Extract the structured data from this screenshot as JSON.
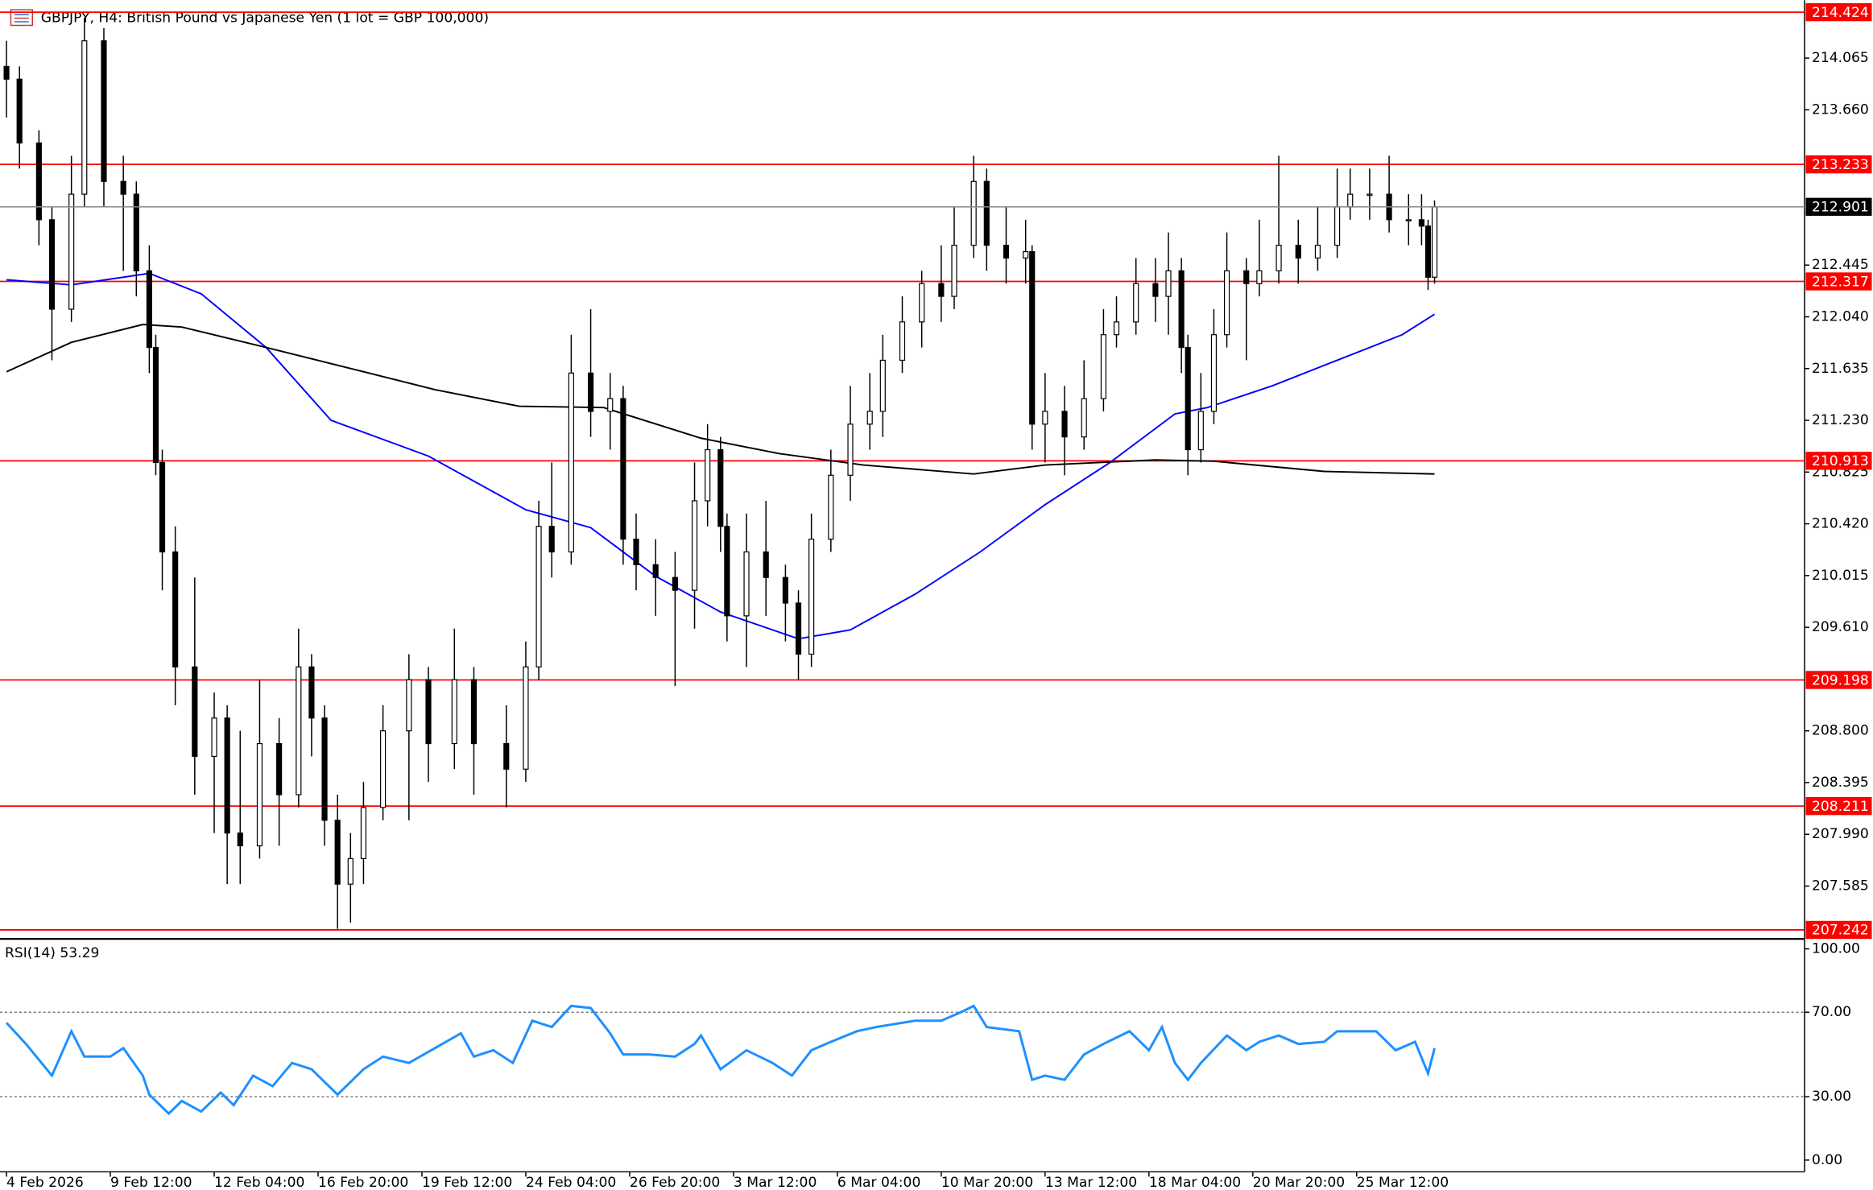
{
  "chart_data": [
    {
      "type": "candlestick",
      "title": "GBPJPY, H4:  British Pound vs Japanese Yen (1 lot = GBP 100,000)",
      "xlim": [
        -1,
        277
      ],
      "ylim": [
        207.19,
        214.49
      ],
      "yticks": [
        {
          "value": 214.065,
          "label": "214.065"
        },
        {
          "value": 213.66,
          "label": "213.660"
        },
        {
          "value": 212.445,
          "label": "212.445"
        },
        {
          "value": 212.04,
          "label": "212.040"
        },
        {
          "value": 211.635,
          "label": "211.635"
        },
        {
          "value": 211.23,
          "label": "211.230"
        },
        {
          "value": 210.825,
          "label": "210.825"
        },
        {
          "value": 210.42,
          "label": "210.420"
        },
        {
          "value": 210.015,
          "label": "210.015"
        },
        {
          "value": 209.61,
          "label": "209.610"
        },
        {
          "value": 208.8,
          "label": "208.800"
        },
        {
          "value": 208.395,
          "label": "208.395"
        },
        {
          "value": 207.99,
          "label": "207.990"
        },
        {
          "value": 207.585,
          "label": "207.585"
        }
      ],
      "levels": [
        214.424,
        213.233,
        212.317,
        210.913,
        209.198,
        208.211,
        207.242
      ],
      "level_color": "#ff0000",
      "last_price": 212.901,
      "x": [
        0,
        2,
        5,
        7,
        10,
        12,
        15,
        18,
        20,
        22,
        23,
        24,
        26,
        29,
        32,
        34,
        36,
        39,
        42,
        45,
        47,
        49,
        51,
        53,
        55,
        58,
        62,
        65,
        69,
        72,
        77,
        80,
        82,
        84,
        87,
        90,
        93,
        95,
        97,
        100,
        103,
        106,
        108,
        110,
        111,
        114,
        117,
        120,
        122,
        124,
        127,
        130,
        133,
        135,
        138,
        141,
        144,
        146,
        149,
        151,
        154,
        157,
        158,
        160,
        163,
        166,
        169,
        171,
        174,
        177,
        179,
        181,
        182,
        184,
        186,
        188,
        191,
        193,
        196,
        199,
        202,
        205,
        207,
        210,
        213,
        216,
        218,
        219,
        220
      ],
      "open": [
        214.0,
        213.9,
        213.4,
        212.8,
        212.1,
        213.0,
        214.2,
        213.1,
        213.0,
        212.4,
        211.8,
        210.9,
        210.2,
        209.3,
        208.6,
        208.9,
        208.0,
        207.9,
        208.7,
        208.3,
        209.3,
        208.9,
        208.1,
        207.6,
        207.8,
        208.2,
        208.8,
        209.2,
        208.7,
        209.2,
        208.7,
        208.5,
        209.3,
        210.4,
        210.2,
        211.6,
        211.3,
        211.4,
        210.3,
        210.1,
        210.0,
        209.9,
        210.6,
        211.0,
        210.4,
        209.7,
        210.2,
        210.0,
        209.8,
        209.4,
        210.3,
        210.8,
        211.2,
        211.3,
        211.7,
        212.0,
        212.3,
        212.2,
        212.6,
        213.1,
        212.6,
        212.5,
        212.55,
        211.2,
        211.3,
        211.1,
        211.4,
        211.9,
        212.0,
        212.3,
        212.2,
        212.4,
        211.8,
        211.0,
        211.3,
        211.9,
        212.4,
        212.3,
        212.4,
        212.6,
        212.5,
        212.6,
        212.9,
        213.0,
        213.0,
        212.8,
        212.8,
        212.75,
        212.35
      ],
      "high": [
        214.2,
        214.0,
        213.5,
        212.9,
        213.3,
        214.38,
        214.3,
        213.3,
        213.1,
        212.6,
        211.9,
        211.0,
        210.4,
        210.0,
        209.1,
        209.0,
        208.8,
        209.2,
        208.9,
        209.6,
        209.4,
        209.0,
        208.3,
        208.0,
        208.4,
        209.0,
        209.4,
        209.3,
        209.6,
        209.3,
        209.0,
        209.5,
        210.6,
        210.9,
        211.9,
        212.1,
        211.6,
        211.5,
        210.5,
        210.3,
        210.2,
        210.9,
        211.2,
        211.1,
        210.5,
        210.5,
        210.6,
        210.1,
        209.9,
        210.5,
        211.0,
        211.5,
        211.6,
        211.9,
        212.2,
        212.4,
        212.6,
        212.9,
        213.3,
        213.2,
        212.9,
        212.8,
        212.6,
        211.6,
        211.5,
        211.7,
        212.1,
        212.2,
        212.5,
        212.5,
        212.7,
        212.5,
        211.9,
        211.6,
        212.1,
        212.7,
        212.5,
        212.8,
        213.3,
        212.8,
        212.9,
        213.2,
        213.2,
        213.2,
        213.3,
        213.0,
        213.0,
        212.8,
        212.95
      ],
      "low": [
        213.6,
        213.2,
        212.6,
        211.7,
        212.0,
        212.9,
        212.9,
        212.4,
        212.2,
        211.6,
        210.8,
        209.9,
        209.0,
        208.3,
        208.0,
        207.6,
        207.6,
        207.8,
        207.9,
        208.2,
        208.6,
        207.9,
        207.25,
        207.3,
        207.6,
        208.1,
        208.1,
        208.4,
        208.5,
        208.3,
        208.2,
        208.4,
        209.2,
        210.0,
        210.1,
        211.1,
        211.0,
        210.1,
        209.9,
        209.7,
        209.15,
        209.6,
        210.4,
        210.2,
        209.5,
        209.3,
        209.7,
        209.5,
        209.2,
        209.3,
        210.2,
        210.6,
        211.0,
        211.1,
        211.6,
        211.8,
        212.0,
        212.1,
        212.5,
        212.4,
        212.3,
        212.3,
        211.0,
        210.9,
        210.8,
        211.0,
        211.3,
        211.8,
        211.9,
        212.0,
        211.9,
        211.6,
        210.8,
        210.9,
        211.2,
        211.8,
        211.7,
        212.2,
        212.3,
        212.3,
        212.4,
        212.5,
        212.8,
        212.8,
        212.7,
        212.6,
        212.6,
        212.25,
        212.3
      ],
      "close": [
        213.9,
        213.4,
        212.8,
        212.1,
        213.0,
        214.2,
        213.1,
        213.0,
        212.4,
        211.8,
        210.9,
        210.2,
        209.3,
        208.6,
        208.9,
        208.0,
        207.9,
        208.7,
        208.3,
        209.3,
        208.9,
        208.1,
        207.6,
        207.8,
        208.2,
        208.8,
        209.2,
        208.7,
        209.2,
        208.7,
        208.5,
        209.3,
        210.4,
        210.2,
        211.6,
        211.3,
        211.4,
        210.3,
        210.1,
        210.0,
        209.9,
        210.6,
        211.0,
        210.4,
        209.7,
        210.2,
        210.0,
        209.8,
        209.4,
        210.3,
        210.8,
        211.2,
        211.3,
        211.7,
        212.0,
        212.3,
        212.2,
        212.6,
        213.1,
        212.6,
        212.5,
        212.55,
        211.2,
        211.3,
        211.1,
        211.4,
        211.9,
        212.0,
        212.3,
        212.2,
        212.4,
        211.8,
        211.0,
        211.3,
        211.9,
        212.4,
        212.3,
        212.4,
        212.6,
        212.5,
        212.6,
        212.9,
        213.0,
        213.0,
        212.8,
        212.8,
        212.75,
        212.35,
        212.9
      ],
      "overlays": [
        {
          "color": "#0000ff",
          "x": [
            0,
            10,
            22,
            30,
            40,
            50,
            65,
            80,
            90,
            100,
            110,
            122,
            130,
            140,
            150,
            160,
            170,
            180,
            185,
            195,
            205,
            215,
            220
          ],
          "values": [
            212.33,
            212.29,
            212.38,
            212.22,
            211.8,
            211.23,
            210.95,
            210.53,
            210.39,
            210.01,
            209.73,
            209.52,
            209.59,
            209.87,
            210.2,
            210.57,
            210.9,
            211.28,
            211.33,
            211.5,
            211.7,
            211.9,
            212.06
          ]
        },
        {
          "color": "#000000",
          "x": [
            0,
            10,
            21,
            27,
            40,
            55,
            66,
            79,
            92,
            107,
            119,
            132,
            149,
            160,
            177,
            186,
            203,
            220
          ],
          "values": [
            211.61,
            211.84,
            211.98,
            211.96,
            211.8,
            211.61,
            211.47,
            211.34,
            211.33,
            211.09,
            210.97,
            210.88,
            210.81,
            210.88,
            210.92,
            210.91,
            210.83,
            210.81
          ]
        }
      ]
    },
    {
      "type": "line",
      "title": "RSI(14) 53.29",
      "color": "#1e90ff",
      "xlim": [
        -1,
        277
      ],
      "ylim": [
        -5,
        103
      ],
      "yticks": [
        {
          "value": 100,
          "label": "100.00"
        },
        {
          "value": 70,
          "label": "70.00"
        },
        {
          "value": 30,
          "label": "30.00"
        },
        {
          "value": 0,
          "label": "0.00"
        }
      ],
      "levels": [
        70,
        30
      ],
      "xticks": [
        {
          "value": 0,
          "label": "4 Feb 2026"
        },
        {
          "value": 16,
          "label": "9 Feb 12:00"
        },
        {
          "value": 32,
          "label": "12 Feb 04:00"
        },
        {
          "value": 48,
          "label": "16 Feb 20:00"
        },
        {
          "value": 64,
          "label": "19 Feb 12:00"
        },
        {
          "value": 80,
          "label": "24 Feb 04:00"
        },
        {
          "value": 96,
          "label": "26 Feb 20:00"
        },
        {
          "value": 112,
          "label": "3 Mar 12:00"
        },
        {
          "value": 128,
          "label": "6 Mar 04:00"
        },
        {
          "value": 144,
          "label": "10 Mar 20:00"
        },
        {
          "value": 160,
          "label": "13 Mar 12:00"
        },
        {
          "value": 176,
          "label": "18 Mar 04:00"
        },
        {
          "value": 192,
          "label": "20 Mar 20:00"
        },
        {
          "value": 208,
          "label": "25 Mar 12:00"
        }
      ],
      "x": [
        0,
        3,
        7,
        10,
        12,
        16,
        18,
        21,
        22,
        25,
        27,
        30,
        33,
        35,
        38,
        41,
        44,
        47,
        51,
        55,
        58,
        62,
        66,
        70,
        72,
        75,
        78,
        81,
        84,
        87,
        90,
        93,
        95,
        99,
        103,
        106,
        107,
        110,
        114,
        118,
        121,
        124,
        127,
        131,
        134,
        140,
        144,
        147,
        149,
        151,
        156,
        158,
        160,
        163,
        166,
        169,
        173,
        176,
        178,
        180,
        182,
        184,
        188,
        191,
        193,
        196,
        199,
        203,
        205,
        208,
        211,
        214,
        217,
        219,
        220
      ],
      "values": [
        65,
        55,
        40,
        61,
        49,
        49,
        53,
        40,
        31,
        22,
        28,
        23,
        32,
        26,
        40,
        35,
        46,
        43,
        31,
        43,
        49,
        46,
        53,
        60,
        49,
        52,
        46,
        66,
        63,
        73,
        72,
        60,
        50,
        50,
        49,
        55,
        59,
        43,
        52,
        46,
        40,
        52,
        56,
        61,
        63,
        66,
        66,
        70,
        73,
        63,
        61,
        38,
        40,
        38,
        50,
        55,
        61,
        52,
        63,
        46,
        38,
        46,
        59,
        52,
        56,
        59,
        55,
        56,
        61,
        61,
        61,
        52,
        56,
        41,
        53
      ]
    }
  ]
}
